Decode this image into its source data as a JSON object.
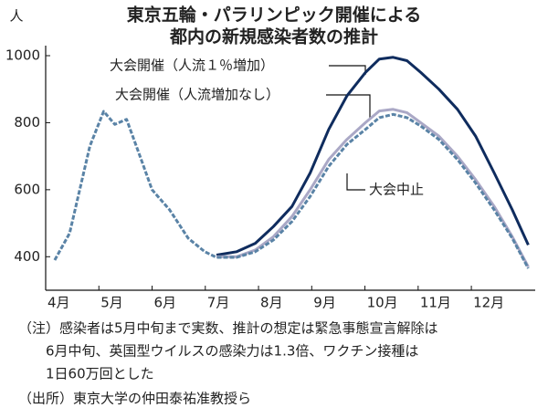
{
  "chart_data": {
    "type": "line",
    "title": [
      "東京五輪・パラリンピック開催による",
      "都内の新規感染者数の推計"
    ],
    "y_label": "人",
    "x": [
      4.17,
      4.45,
      4.83,
      5.09,
      5.3,
      5.52,
      5.78,
      6.0,
      6.33,
      6.68,
      6.99,
      7.21,
      7.59,
      7.94,
      8.28,
      8.63,
      8.97,
      9.32,
      9.66,
      10.01,
      10.27,
      10.53,
      10.79,
      11.05,
      11.39,
      11.74,
      12.08,
      12.43,
      12.77,
      13.07
    ],
    "series": [
      {
        "name": "大会開催（人流１％増加）",
        "color": "#0f2c5e",
        "dashed": false,
        "values": [
          null,
          null,
          null,
          null,
          null,
          null,
          null,
          null,
          null,
          null,
          null,
          405,
          415,
          440,
          490,
          550,
          650,
          780,
          880,
          950,
          990,
          995,
          985,
          950,
          900,
          840,
          760,
          650,
          540,
          435
        ]
      },
      {
        "name": "大会開催（人流増加なし）",
        "color": "#aaa8c6",
        "dashed": false,
        "values": [
          null,
          null,
          null,
          null,
          null,
          null,
          null,
          null,
          null,
          null,
          null,
          400,
          400,
          420,
          460,
          520,
          600,
          690,
          750,
          800,
          835,
          840,
          830,
          800,
          760,
          700,
          630,
          550,
          460,
          370
        ]
      },
      {
        "name": "大会中止",
        "color": "#5a83a6",
        "dashed": true,
        "values": [
          390,
          470,
          730,
          834,
          795,
          810,
          697,
          600,
          540,
          455,
          415,
          398,
          398,
          415,
          450,
          505,
          580,
          670,
          735,
          780,
          815,
          825,
          815,
          790,
          750,
          690,
          620,
          540,
          455,
          365
        ]
      }
    ],
    "xlim": [
      4,
      13.2
    ],
    "xticks": [
      {
        "value": 4,
        "label": "4月"
      },
      {
        "value": 5,
        "label": "5月"
      },
      {
        "value": 6,
        "label": "6月"
      },
      {
        "value": 7,
        "label": "7月"
      },
      {
        "value": 8,
        "label": "8月"
      },
      {
        "value": 9,
        "label": "9月"
      },
      {
        "value": 10,
        "label": "10月"
      },
      {
        "value": 11,
        "label": "11月"
      },
      {
        "value": 12,
        "label": "12月"
      }
    ],
    "ylim": [
      300,
      1030
    ],
    "yticks": [
      400,
      600,
      800,
      1000
    ],
    "grid": false,
    "notes": [
      "（注）感染者は5月中旬まで実数、推計の想定は緊急事態宣言解除は",
      "6月中旬、英国型ウイルスの感染力は1.3倍、ワクチン接種は",
      "1日60万回とした",
      "（出所）東京大学の仲田泰祐准教授ら"
    ]
  }
}
